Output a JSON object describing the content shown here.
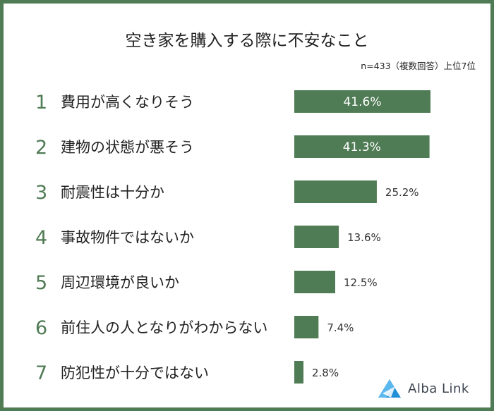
{
  "chart_data": {
    "type": "bar",
    "orientation": "horizontal",
    "title": "空き家を購入する際に不安なこと",
    "note": "n=433（複数回答）上位7位",
    "ranks": [
      "1",
      "2",
      "3",
      "4",
      "5",
      "6",
      "7"
    ],
    "categories": [
      "費用が高くなりそう",
      "建物の状態が悪そう",
      "耐震性は十分か",
      "事故物件ではないか",
      "周辺環境が良いか",
      "前住人の人となりがわからない",
      "防犯性が十分ではない"
    ],
    "values": [
      41.6,
      41.3,
      25.2,
      13.6,
      12.5,
      7.4,
      2.8
    ],
    "value_labels": [
      "41.6%",
      "41.3%",
      "25.2%",
      "13.6%",
      "12.5%",
      "7.4%",
      "2.8%"
    ],
    "unit": "%",
    "grid": false,
    "legend": "none",
    "bar_color": "#4f7b55"
  },
  "brand": {
    "name": "Alba Link",
    "color": "#1f8fd8"
  }
}
